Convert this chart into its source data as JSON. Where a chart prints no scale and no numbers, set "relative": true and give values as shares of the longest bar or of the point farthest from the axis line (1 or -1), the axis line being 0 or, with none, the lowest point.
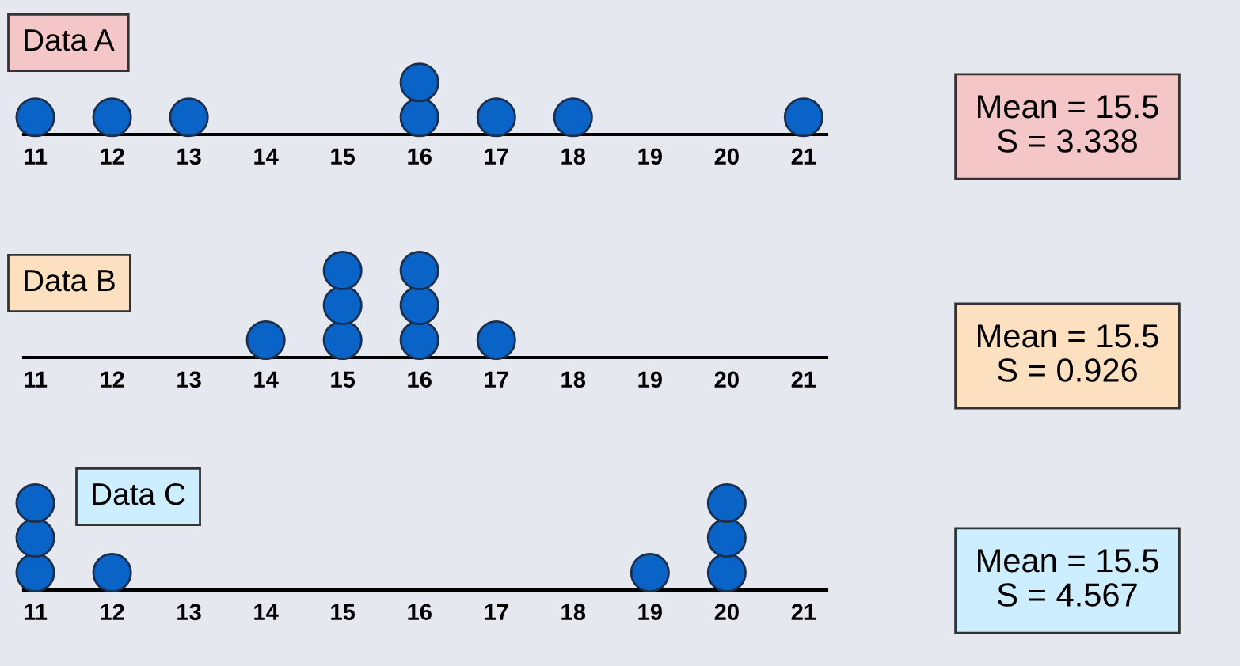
{
  "chart_data": [
    {
      "type": "scatter",
      "title": "Data A",
      "x": [
        11,
        12,
        13,
        16,
        16,
        17,
        18,
        21
      ],
      "values": [
        0.33,
        0.33,
        0.33,
        0.33,
        1,
        0.33,
        0.33,
        0.33
      ],
      "relative": true,
      "color": "#0a64c8",
      "xlim": [
        10.85,
        21.3
      ],
      "xticks": [
        11,
        12,
        13,
        14,
        15,
        16,
        17,
        18,
        19,
        20,
        21
      ],
      "tick_labels": "x",
      "marker": "circle",
      "annotations": [
        "Mean = 15.5",
        "S = 3.338"
      ]
    },
    {
      "type": "scatter",
      "title": "Data B",
      "x": [
        14,
        15,
        15,
        15,
        16,
        16,
        16,
        17
      ],
      "values": [
        0.2,
        0.2,
        0.6,
        1,
        0.2,
        0.6,
        1,
        0.2
      ],
      "relative": true,
      "color": "#0a64c8",
      "xlim": [
        10.85,
        21.3
      ],
      "xticks": [
        11,
        12,
        13,
        14,
        15,
        16,
        17,
        18,
        19,
        20,
        21
      ],
      "tick_labels": "x",
      "marker": "circle",
      "annotations": [
        "Mean = 15.5",
        "S = 0.926"
      ]
    },
    {
      "type": "scatter",
      "title": "Data C",
      "x": [
        11,
        11,
        11,
        12,
        19,
        20,
        20,
        20
      ],
      "values": [
        0.2,
        0.6,
        1,
        0.2,
        0.2,
        0.2,
        0.6,
        1
      ],
      "relative": true,
      "color": "#0a64c8",
      "xlim": [
        10.85,
        21.3
      ],
      "xticks": [
        11,
        12,
        13,
        14,
        15,
        16,
        17,
        18,
        19,
        20,
        21
      ],
      "tick_labels": "x",
      "marker": "circle",
      "annotations": [
        "Mean = 15.5",
        "S = 4.567"
      ]
    }
  ]
}
